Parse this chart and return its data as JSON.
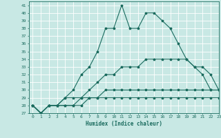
{
  "xlabel": "Humidex (Indice chaleur)",
  "ylabel": "",
  "xlim": [
    -0.5,
    23
  ],
  "ylim": [
    27,
    41.5
  ],
  "yticks": [
    27,
    28,
    29,
    30,
    31,
    32,
    33,
    34,
    35,
    36,
    37,
    38,
    39,
    40,
    41
  ],
  "xticks": [
    0,
    1,
    2,
    3,
    4,
    5,
    6,
    7,
    8,
    9,
    10,
    11,
    12,
    13,
    14,
    15,
    16,
    17,
    18,
    19,
    20,
    21,
    22,
    23
  ],
  "bg_color": "#c8e8e4",
  "grid_color": "#ffffff",
  "line_color": "#1a6b5e",
  "series": [
    [
      28,
      27,
      28,
      28,
      29,
      30,
      32,
      33,
      35,
      38,
      38,
      41,
      38,
      38,
      40,
      40,
      39,
      38,
      36,
      34,
      33,
      32,
      30,
      30
    ],
    [
      28,
      27,
      28,
      28,
      29,
      29,
      29,
      30,
      31,
      32,
      32,
      33,
      33,
      33,
      34,
      34,
      34,
      34,
      34,
      34,
      33,
      33,
      32,
      30
    ],
    [
      28,
      27,
      28,
      28,
      28,
      28,
      29,
      29,
      29,
      30,
      30,
      30,
      30,
      30,
      30,
      30,
      30,
      30,
      30,
      30,
      30,
      30,
      30,
      30
    ],
    [
      28,
      27,
      28,
      28,
      28,
      28,
      28,
      29,
      29,
      29,
      29,
      29,
      29,
      29,
      29,
      29,
      29,
      29,
      29,
      29,
      29,
      29,
      29,
      29
    ]
  ]
}
